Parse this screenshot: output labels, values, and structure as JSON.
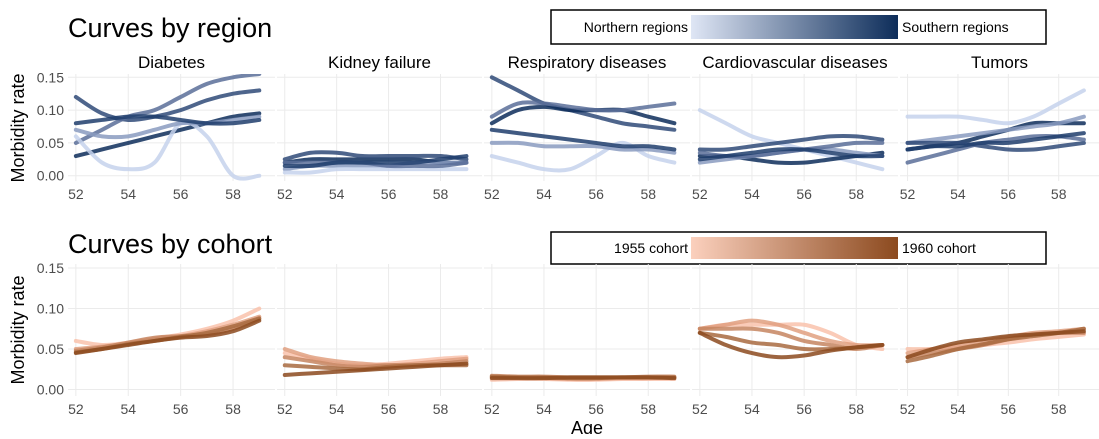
{
  "chart_data": [
    {
      "type": "line",
      "title": "Curves by region",
      "ylabel": "Morbidity rate",
      "legend": {
        "low": "Northern regions",
        "high": "Southern regions",
        "colors": [
          "#dfe6f5",
          "#0d2d5a"
        ]
      },
      "x": [
        52,
        53,
        54,
        55,
        56,
        57,
        58,
        59
      ],
      "xlim": [
        51.7,
        59.6
      ],
      "xticks": [
        52,
        54,
        56,
        58
      ],
      "ylim": [
        -0.008,
        0.155
      ],
      "yticks": [
        {
          "value": 0,
          "label": "0.00"
        },
        {
          "value": 0.05,
          "label": "0.05"
        },
        {
          "value": 0.1,
          "label": "0.10"
        },
        {
          "value": 0.15,
          "label": "0.15"
        }
      ],
      "grid": true,
      "facets": [
        {
          "title": "Diabetes",
          "series": [
            {
              "color": "#2f4a78",
              "values": [
                0.12,
                0.095,
                0.085,
                0.09,
                0.1,
                0.115,
                0.125,
                0.13
              ]
            },
            {
              "color": "#5b6f99",
              "values": [
                0.05,
                0.07,
                0.09,
                0.1,
                0.12,
                0.14,
                0.15,
                0.155
              ]
            },
            {
              "color": "#0d2d5a",
              "values": [
                0.03,
                0.04,
                0.05,
                0.06,
                0.07,
                0.08,
                0.09,
                0.095
              ]
            },
            {
              "color": "#c6d2ec",
              "values": [
                0.06,
                0.02,
                0.01,
                0.02,
                0.08,
                0.06,
                0.0,
                0.0
              ]
            },
            {
              "color": "#8a9bc0",
              "values": [
                0.07,
                0.06,
                0.06,
                0.07,
                0.08,
                0.08,
                0.085,
                0.09
              ]
            },
            {
              "color": "#1f3d6c",
              "values": [
                0.08,
                0.085,
                0.09,
                0.09,
                0.085,
                0.08,
                0.08,
                0.085
              ]
            }
          ]
        },
        {
          "title": "Kidney failure",
          "series": [
            {
              "color": "#0d2d5a",
              "values": [
                0.02,
                0.025,
                0.025,
                0.025,
                0.025,
                0.025,
                0.02,
                0.02
              ]
            },
            {
              "color": "#2f4a78",
              "values": [
                0.025,
                0.035,
                0.035,
                0.03,
                0.03,
                0.03,
                0.03,
                0.025
              ]
            },
            {
              "color": "#8a9bc0",
              "values": [
                0.01,
                0.015,
                0.015,
                0.015,
                0.015,
                0.02,
                0.02,
                0.02
              ]
            },
            {
              "color": "#c6d2ec",
              "values": [
                0.005,
                0.005,
                0.01,
                0.01,
                0.01,
                0.01,
                0.01,
                0.01
              ]
            },
            {
              "color": "#5b6f99",
              "values": [
                0.02,
                0.02,
                0.02,
                0.02,
                0.015,
                0.015,
                0.015,
                0.02
              ]
            },
            {
              "color": "#1f3d6c",
              "values": [
                0.015,
                0.015,
                0.02,
                0.02,
                0.02,
                0.02,
                0.025,
                0.03
              ]
            }
          ]
        },
        {
          "title": "Respiratory diseases",
          "series": [
            {
              "color": "#2f4a78",
              "values": [
                0.15,
                0.13,
                0.11,
                0.1,
                0.09,
                0.08,
                0.075,
                0.07
              ]
            },
            {
              "color": "#0d2d5a",
              "values": [
                0.08,
                0.1,
                0.105,
                0.1,
                0.1,
                0.1,
                0.09,
                0.08
              ]
            },
            {
              "color": "#5b6f99",
              "values": [
                0.09,
                0.11,
                0.11,
                0.105,
                0.1,
                0.1,
                0.105,
                0.11
              ]
            },
            {
              "color": "#c6d2ec",
              "values": [
                0.03,
                0.02,
                0.01,
                0.01,
                0.03,
                0.05,
                0.03,
                0.02
              ]
            },
            {
              "color": "#8a9bc0",
              "values": [
                0.05,
                0.05,
                0.045,
                0.045,
                0.045,
                0.04,
                0.04,
                0.035
              ]
            },
            {
              "color": "#1f3d6c",
              "values": [
                0.07,
                0.065,
                0.06,
                0.055,
                0.05,
                0.045,
                0.045,
                0.04
              ]
            }
          ]
        },
        {
          "title": "Cardiovascular diseases",
          "series": [
            {
              "color": "#c6d2ec",
              "values": [
                0.1,
                0.08,
                0.06,
                0.05,
                0.04,
                0.03,
                0.02,
                0.01
              ]
            },
            {
              "color": "#0d2d5a",
              "values": [
                0.03,
                0.03,
                0.025,
                0.02,
                0.02,
                0.025,
                0.03,
                0.035
              ]
            },
            {
              "color": "#2f4a78",
              "values": [
                0.04,
                0.04,
                0.045,
                0.05,
                0.055,
                0.06,
                0.06,
                0.055
              ]
            },
            {
              "color": "#8a9bc0",
              "values": [
                0.02,
                0.025,
                0.03,
                0.035,
                0.04,
                0.04,
                0.035,
                0.03
              ]
            },
            {
              "color": "#5b6f99",
              "values": [
                0.035,
                0.03,
                0.03,
                0.035,
                0.04,
                0.045,
                0.05,
                0.05
              ]
            },
            {
              "color": "#1f3d6c",
              "values": [
                0.025,
                0.03,
                0.035,
                0.04,
                0.04,
                0.035,
                0.03,
                0.03
              ]
            }
          ]
        },
        {
          "title": "Tumors",
          "series": [
            {
              "color": "#c6d2ec",
              "values": [
                0.09,
                0.09,
                0.09,
                0.085,
                0.08,
                0.09,
                0.11,
                0.13
              ]
            },
            {
              "color": "#0d2d5a",
              "values": [
                0.04,
                0.045,
                0.05,
                0.06,
                0.07,
                0.08,
                0.08,
                0.08
              ]
            },
            {
              "color": "#8a9bc0",
              "values": [
                0.05,
                0.055,
                0.06,
                0.065,
                0.07,
                0.075,
                0.08,
                0.09
              ]
            },
            {
              "color": "#2f4a78",
              "values": [
                0.05,
                0.05,
                0.05,
                0.045,
                0.04,
                0.04,
                0.045,
                0.05
              ]
            },
            {
              "color": "#5b6f99",
              "values": [
                0.02,
                0.03,
                0.04,
                0.05,
                0.055,
                0.06,
                0.06,
                0.055
              ]
            },
            {
              "color": "#1f3d6c",
              "values": [
                0.04,
                0.045,
                0.045,
                0.05,
                0.05,
                0.055,
                0.06,
                0.065
              ]
            }
          ]
        }
      ]
    },
    {
      "type": "line",
      "title": "Curves by cohort",
      "ylabel": "Morbidity rate",
      "xlabel": "Age",
      "legend": {
        "low": "1955 cohort",
        "high": "1960 cohort",
        "colors": [
          "#fbd0bd",
          "#8c4a1f"
        ]
      },
      "x": [
        52,
        53,
        54,
        55,
        56,
        57,
        58,
        59
      ],
      "xlim": [
        51.7,
        59.6
      ],
      "xticks": [
        52,
        54,
        56,
        58
      ],
      "ylim": [
        -0.008,
        0.155
      ],
      "yticks": [
        {
          "value": 0,
          "label": "0.00"
        },
        {
          "value": 0.05,
          "label": "0.05"
        },
        {
          "value": 0.1,
          "label": "0.10"
        },
        {
          "value": 0.15,
          "label": "0.15"
        }
      ],
      "grid": true,
      "facets": [
        {
          "series": [
            {
              "color": "#f9c2ab",
              "values": [
                0.06,
                0.055,
                0.058,
                0.063,
                0.068,
                0.075,
                0.085,
                0.1
              ]
            },
            {
              "color": "#e0a080",
              "values": [
                0.05,
                0.053,
                0.057,
                0.062,
                0.066,
                0.072,
                0.08,
                0.09
              ]
            },
            {
              "color": "#c68560",
              "values": [
                0.048,
                0.052,
                0.058,
                0.064,
                0.066,
                0.068,
                0.075,
                0.087
              ]
            },
            {
              "color": "#a86a40",
              "values": [
                0.046,
                0.05,
                0.056,
                0.06,
                0.065,
                0.07,
                0.078,
                0.088
              ]
            },
            {
              "color": "#8c4a1f",
              "values": [
                0.045,
                0.05,
                0.055,
                0.06,
                0.064,
                0.066,
                0.072,
                0.085
              ]
            }
          ]
        },
        {
          "series": [
            {
              "color": "#f9c2ab",
              "values": [
                0.045,
                0.038,
                0.032,
                0.03,
                0.032,
                0.035,
                0.038,
                0.04
              ]
            },
            {
              "color": "#e0a080",
              "values": [
                0.05,
                0.04,
                0.035,
                0.032,
                0.03,
                0.032,
                0.035,
                0.038
              ]
            },
            {
              "color": "#c68560",
              "values": [
                0.04,
                0.035,
                0.03,
                0.028,
                0.03,
                0.03,
                0.032,
                0.035
              ]
            },
            {
              "color": "#a86a40",
              "values": [
                0.03,
                0.028,
                0.026,
                0.025,
                0.028,
                0.03,
                0.03,
                0.03
              ]
            },
            {
              "color": "#8c4a1f",
              "values": [
                0.018,
                0.02,
                0.022,
                0.024,
                0.026,
                0.028,
                0.03,
                0.032
              ]
            }
          ]
        },
        {
          "series": [
            {
              "color": "#f9c2ab",
              "values": [
                0.012,
                0.013,
                0.013,
                0.012,
                0.012,
                0.013,
                0.013,
                0.013
              ]
            },
            {
              "color": "#e0a080",
              "values": [
                0.015,
                0.015,
                0.014,
                0.013,
                0.013,
                0.014,
                0.014,
                0.015
              ]
            },
            {
              "color": "#c68560",
              "values": [
                0.017,
                0.016,
                0.016,
                0.015,
                0.015,
                0.015,
                0.016,
                0.016
              ]
            },
            {
              "color": "#a86a40",
              "values": [
                0.016,
                0.015,
                0.015,
                0.014,
                0.014,
                0.015,
                0.015,
                0.015
              ]
            },
            {
              "color": "#8c4a1f",
              "values": [
                0.014,
                0.014,
                0.014,
                0.015,
                0.015,
                0.015,
                0.015,
                0.014
              ]
            }
          ]
        },
        {
          "series": [
            {
              "color": "#f9c2ab",
              "values": [
                0.075,
                0.08,
                0.08,
                0.08,
                0.08,
                0.07,
                0.055,
                0.05
              ]
            },
            {
              "color": "#e0a080",
              "values": [
                0.075,
                0.08,
                0.085,
                0.08,
                0.07,
                0.06,
                0.055,
                0.055
              ]
            },
            {
              "color": "#c68560",
              "values": [
                0.075,
                0.075,
                0.075,
                0.07,
                0.06,
                0.055,
                0.05,
                0.055
              ]
            },
            {
              "color": "#a86a40",
              "values": [
                0.07,
                0.065,
                0.058,
                0.055,
                0.05,
                0.05,
                0.052,
                0.055
              ]
            },
            {
              "color": "#8c4a1f",
              "values": [
                0.07,
                0.055,
                0.045,
                0.04,
                0.042,
                0.048,
                0.052,
                0.055
              ]
            }
          ]
        },
        {
          "series": [
            {
              "color": "#f9c2ab",
              "values": [
                0.05,
                0.05,
                0.052,
                0.055,
                0.058,
                0.062,
                0.065,
                0.068
              ]
            },
            {
              "color": "#e0a080",
              "values": [
                0.045,
                0.05,
                0.055,
                0.06,
                0.065,
                0.07,
                0.072,
                0.075
              ]
            },
            {
              "color": "#c68560",
              "values": [
                0.04,
                0.045,
                0.05,
                0.055,
                0.062,
                0.068,
                0.07,
                0.07
              ]
            },
            {
              "color": "#a86a40",
              "values": [
                0.035,
                0.042,
                0.05,
                0.056,
                0.062,
                0.066,
                0.07,
                0.075
              ]
            },
            {
              "color": "#8c4a1f",
              "values": [
                0.04,
                0.05,
                0.058,
                0.062,
                0.066,
                0.068,
                0.07,
                0.072
              ]
            }
          ]
        }
      ]
    }
  ]
}
